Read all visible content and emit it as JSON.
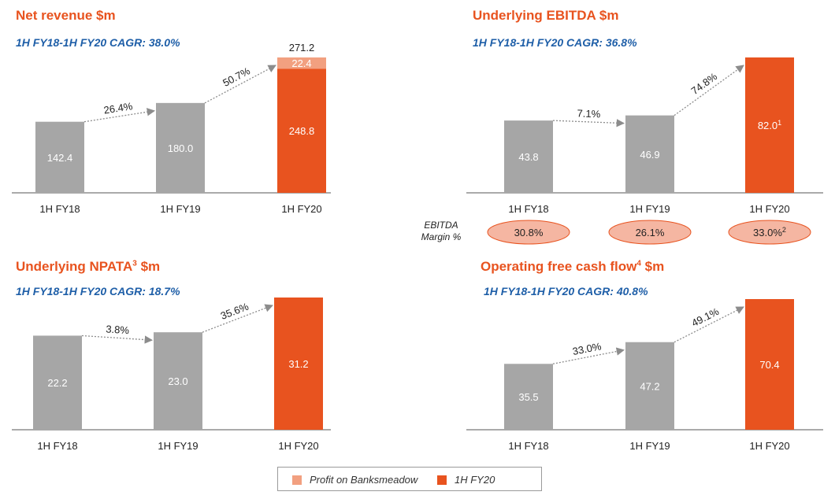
{
  "colors": {
    "accent": "#e8531f",
    "accent_light": "#f2a080",
    "grey": "#a6a6a6",
    "subtitle": "#1f5fa8",
    "margin_fill": "#f5b6a2",
    "margin_stroke": "#e8531f"
  },
  "panels": [
    {
      "title": "Net revenue $m",
      "title_sup": "",
      "subtitle": "1H FY18-1H FY20 CAGR: 38.0%"
    },
    {
      "title": "Underlying EBITDA $m",
      "title_sup": "",
      "subtitle": "1H FY18-1H FY20 CAGR: 36.8%"
    },
    {
      "title": "Underlying NPATA",
      "title_sup": "3",
      "title_suffix": " $m",
      "subtitle": "1H FY18-1H FY20 CAGR: 18.7%"
    },
    {
      "title": "Operating free cash flow",
      "title_sup": "4",
      "title_suffix": "  $m",
      "subtitle": "1H FY18-1H FY20 CAGR: 40.8%"
    }
  ],
  "ebitda_margin": {
    "label_line1": "EBITDA",
    "label_line2": "Margin %",
    "values": [
      "30.8%",
      "26.1%",
      "33.0%"
    ],
    "sups": [
      "",
      "",
      "2"
    ]
  },
  "legend": {
    "items": [
      {
        "label": "Profit on Banksmeadow",
        "color": "#f2a080"
      },
      {
        "label": "1H FY20",
        "color": "#e8531f"
      }
    ]
  },
  "chart_data": [
    {
      "type": "bar",
      "title": "Net revenue $m",
      "categories": [
        "1H FY18",
        "1H FY19",
        "1H FY20"
      ],
      "series": [
        {
          "name": "",
          "values": [
            142.4,
            180.0,
            248.8
          ]
        },
        {
          "name": "Profit on Banksmeadow",
          "values": [
            0,
            0,
            22.4
          ]
        }
      ],
      "labels": [
        "142.4",
        "180.0",
        "248.8"
      ],
      "stack_labels": [
        "",
        "",
        "22.4"
      ],
      "total_label": "271.2",
      "label_sups": [
        "",
        "",
        ""
      ],
      "growth": [
        "26.4%",
        "50.7%"
      ],
      "ylim": [
        0,
        271.2
      ]
    },
    {
      "type": "bar",
      "title": "Underlying EBITDA $m",
      "categories": [
        "1H FY18",
        "1H FY19",
        "1H FY20"
      ],
      "series": [
        {
          "name": "",
          "values": [
            43.8,
            46.9,
            82.0
          ]
        }
      ],
      "labels": [
        "43.8",
        "46.9",
        "82.0"
      ],
      "stack_labels": [
        "",
        "",
        ""
      ],
      "total_label": "",
      "label_sups": [
        "",
        "",
        "1"
      ],
      "growth": [
        "7.1%",
        "74.8%"
      ],
      "ylim": [
        0,
        82.0
      ]
    },
    {
      "type": "bar",
      "title": "Underlying NPATA $m",
      "categories": [
        "1H FY18",
        "1H FY19",
        "1H FY20"
      ],
      "series": [
        {
          "name": "",
          "values": [
            22.2,
            23.0,
            31.2
          ]
        }
      ],
      "labels": [
        "22.2",
        "23.0",
        "31.2"
      ],
      "stack_labels": [
        "",
        "",
        ""
      ],
      "total_label": "",
      "label_sups": [
        "",
        "",
        ""
      ],
      "growth": [
        "3.8%",
        "35.6%"
      ],
      "ylim": [
        0,
        31.2
      ]
    },
    {
      "type": "bar",
      "title": "Operating free cash flow $m",
      "categories": [
        "1H FY18",
        "1H FY19",
        "1H FY20"
      ],
      "series": [
        {
          "name": "",
          "values": [
            35.5,
            47.2,
            70.4
          ]
        }
      ],
      "labels": [
        "35.5",
        "47.2",
        "70.4"
      ],
      "stack_labels": [
        "",
        "",
        ""
      ],
      "total_label": "",
      "label_sups": [
        "",
        "",
        ""
      ],
      "growth": [
        "33.0%",
        "49.1%"
      ],
      "ylim": [
        0,
        70.4
      ]
    }
  ]
}
